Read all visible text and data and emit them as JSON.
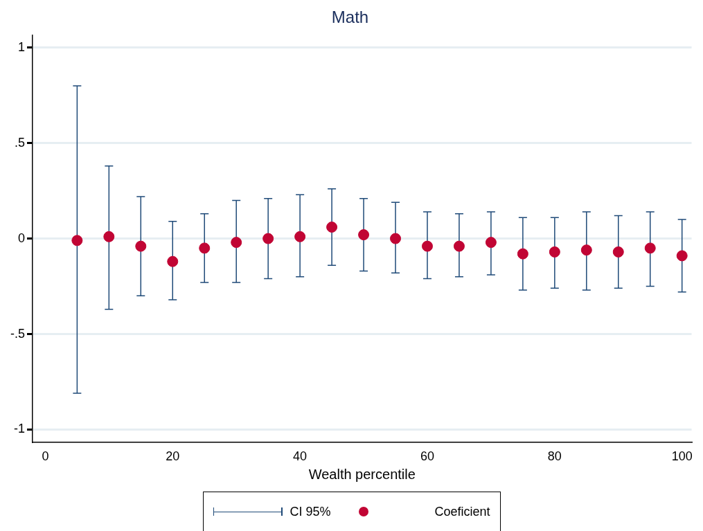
{
  "chart_data": {
    "type": "scatter",
    "title": "Math",
    "xlabel": "Wealth percentile",
    "x": [
      5,
      10,
      15,
      20,
      25,
      30,
      35,
      40,
      45,
      50,
      55,
      60,
      65,
      70,
      75,
      80,
      85,
      90,
      95,
      100
    ],
    "series": [
      {
        "name": "Coeficient",
        "marker": "circle",
        "color": "#c10534",
        "values": [
          -0.01,
          0.01,
          -0.04,
          -0.12,
          -0.05,
          -0.02,
          0.0,
          0.01,
          0.06,
          0.02,
          0.0,
          -0.04,
          -0.04,
          -0.02,
          -0.08,
          -0.07,
          -0.06,
          -0.07,
          -0.05,
          -0.09
        ],
        "errors": [
          [
            -0.81,
            0.8
          ],
          [
            -0.37,
            0.38
          ],
          [
            -0.3,
            0.22
          ],
          [
            -0.32,
            0.09
          ],
          [
            -0.23,
            0.13
          ],
          [
            -0.23,
            0.2
          ],
          [
            -0.21,
            0.21
          ],
          [
            -0.2,
            0.23
          ],
          [
            -0.14,
            0.26
          ],
          [
            -0.17,
            0.21
          ],
          [
            -0.18,
            0.19
          ],
          [
            -0.21,
            0.14
          ],
          [
            -0.2,
            0.13
          ],
          [
            -0.19,
            0.14
          ],
          [
            -0.27,
            0.11
          ],
          [
            -0.26,
            0.11
          ],
          [
            -0.27,
            0.14
          ],
          [
            -0.26,
            0.12
          ],
          [
            -0.25,
            0.14
          ],
          [
            -0.28,
            0.1
          ]
        ]
      }
    ],
    "annotations": [
      "CI 95%"
    ],
    "xlim": [
      -2,
      101.5
    ],
    "xticks": [
      0,
      20,
      40,
      60,
      80,
      100
    ],
    "ylim": [
      -1.065,
      1.065
    ],
    "yticks": [
      {
        "value": -1,
        "label": "-1"
      },
      {
        "value": -0.5,
        "label": "-.5"
      },
      0,
      {
        "value": 0.5,
        "label": ".5"
      },
      1
    ],
    "grid": "y",
    "legend": "bottom"
  }
}
